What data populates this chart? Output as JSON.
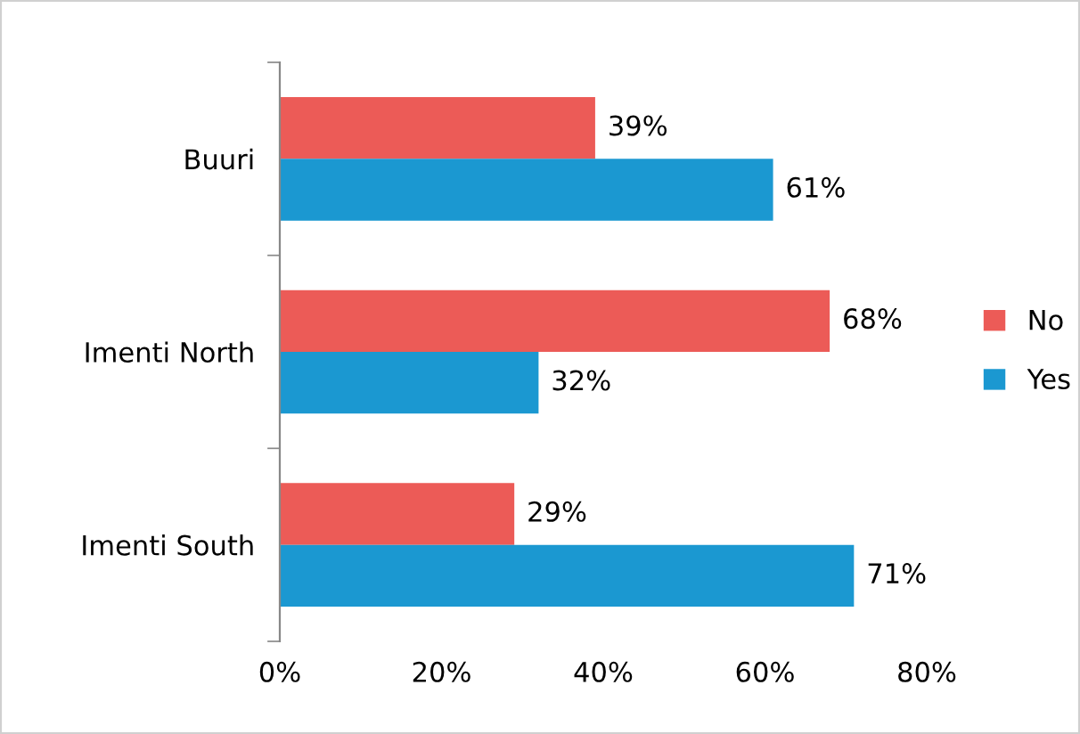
{
  "chart_data": {
    "type": "bar",
    "orientation": "horizontal",
    "categories": [
      "Buuri",
      "Imenti North",
      "Imenti South"
    ],
    "series": [
      {
        "name": "No",
        "color": "#ec5b57",
        "values": [
          39,
          68,
          29
        ],
        "value_labels": [
          "39%",
          "68%",
          "29%"
        ]
      },
      {
        "name": "Yes",
        "color": "#1b98d1",
        "values": [
          61,
          32,
          71
        ],
        "value_labels": [
          "61%",
          "32%",
          "71%"
        ]
      }
    ],
    "xlim": [
      0,
      80
    ],
    "xticks": [
      {
        "value": 0,
        "label": "0%"
      },
      {
        "value": 20,
        "label": "20%"
      },
      {
        "value": 40,
        "label": "40%"
      },
      {
        "value": 60,
        "label": "60%"
      },
      {
        "value": 80,
        "label": "80%"
      }
    ],
    "grid": false,
    "legend": "right"
  }
}
